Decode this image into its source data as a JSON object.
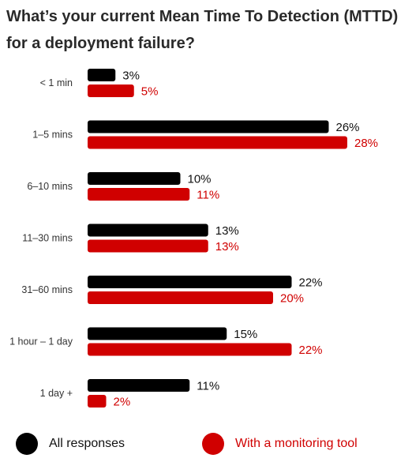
{
  "title": "What’s your current Mean Time To Detection (MTTD) for a deployment failure?",
  "colors": {
    "all": "#000000",
    "monitoring": "#d00000",
    "label_all": "#111111",
    "label_monitoring": "#d00000",
    "axis_label": "#333333"
  },
  "legend": [
    {
      "label": "All responses",
      "color": "#000000"
    },
    {
      "label": "With a monitoring tool",
      "color": "#d00000"
    }
  ],
  "chart_data": {
    "type": "bar",
    "orientation": "horizontal",
    "title": "What’s your current Mean Time To Detection (MTTD) for a deployment failure?",
    "categories": [
      "< 1 min",
      "1–5 mins",
      "6–10 mins",
      "11–30 mins",
      "31–60 mins",
      "1 hour – 1 day",
      "1 day +"
    ],
    "series": [
      {
        "name": "All responses",
        "values": [
          3,
          26,
          10,
          13,
          22,
          15,
          11
        ],
        "labels": [
          "3%",
          "26%",
          "10%",
          "13%",
          "22%",
          "15%",
          "11%"
        ],
        "color": "#000000"
      },
      {
        "name": "With a monitoring tool",
        "values": [
          5,
          28,
          11,
          13,
          20,
          22,
          2
        ],
        "labels": [
          "5%",
          "28%",
          "11%",
          "13%",
          "20%",
          "22%",
          "2%"
        ],
        "color": "#d00000"
      }
    ],
    "unit": "%",
    "xlim": [
      0,
      28
    ],
    "grid": false,
    "legend_position": "bottom"
  }
}
